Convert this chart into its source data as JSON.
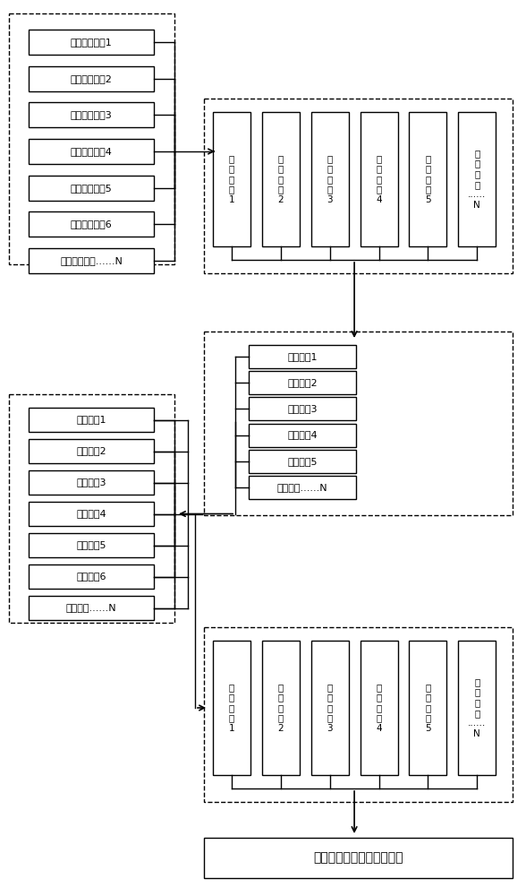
{
  "title": "国家陆基激光武器防空系统",
  "single_weapons": [
    "单个激光武器1",
    "单个激光武器2",
    "单个激光武器3",
    "单个激光武器4",
    "单个激光武器5",
    "单个激光武器6",
    "单个激光武器......N"
  ],
  "array_units": [
    "阵\n列\n单\n元\n1",
    "阵\n列\n单\n元\n2",
    "阵\n列\n单\n元\n3",
    "阵\n列\n单\n元\n4",
    "阵\n列\n单\n元\n5",
    "阵\n列\n单\n元\n......\nN"
  ],
  "district_arrays": [
    "区级阵列1",
    "区级阵列2",
    "区级阵列3",
    "区级阵列4",
    "区级阵列5",
    "区级阵列......N"
  ],
  "city_arrays": [
    "市级阵列1",
    "市级阵列2",
    "市级阵列3",
    "市级阵列4",
    "市级阵列5",
    "市级阵列6",
    "市级阵列......N"
  ],
  "province_units": [
    "省\n级\n阵\n列\n1",
    "省\n级\n阵\n列\n2",
    "省\n级\n阵\n列\n3",
    "省\n级\n阵\n列\n4",
    "省\n级\n阵\n列\n5",
    "省\n级\n阵\n列\n......\nN"
  ],
  "bg_color": "#ffffff",
  "box_color": "#000000",
  "dash_color": "#000000",
  "font_size": 8,
  "title_font_size": 10
}
